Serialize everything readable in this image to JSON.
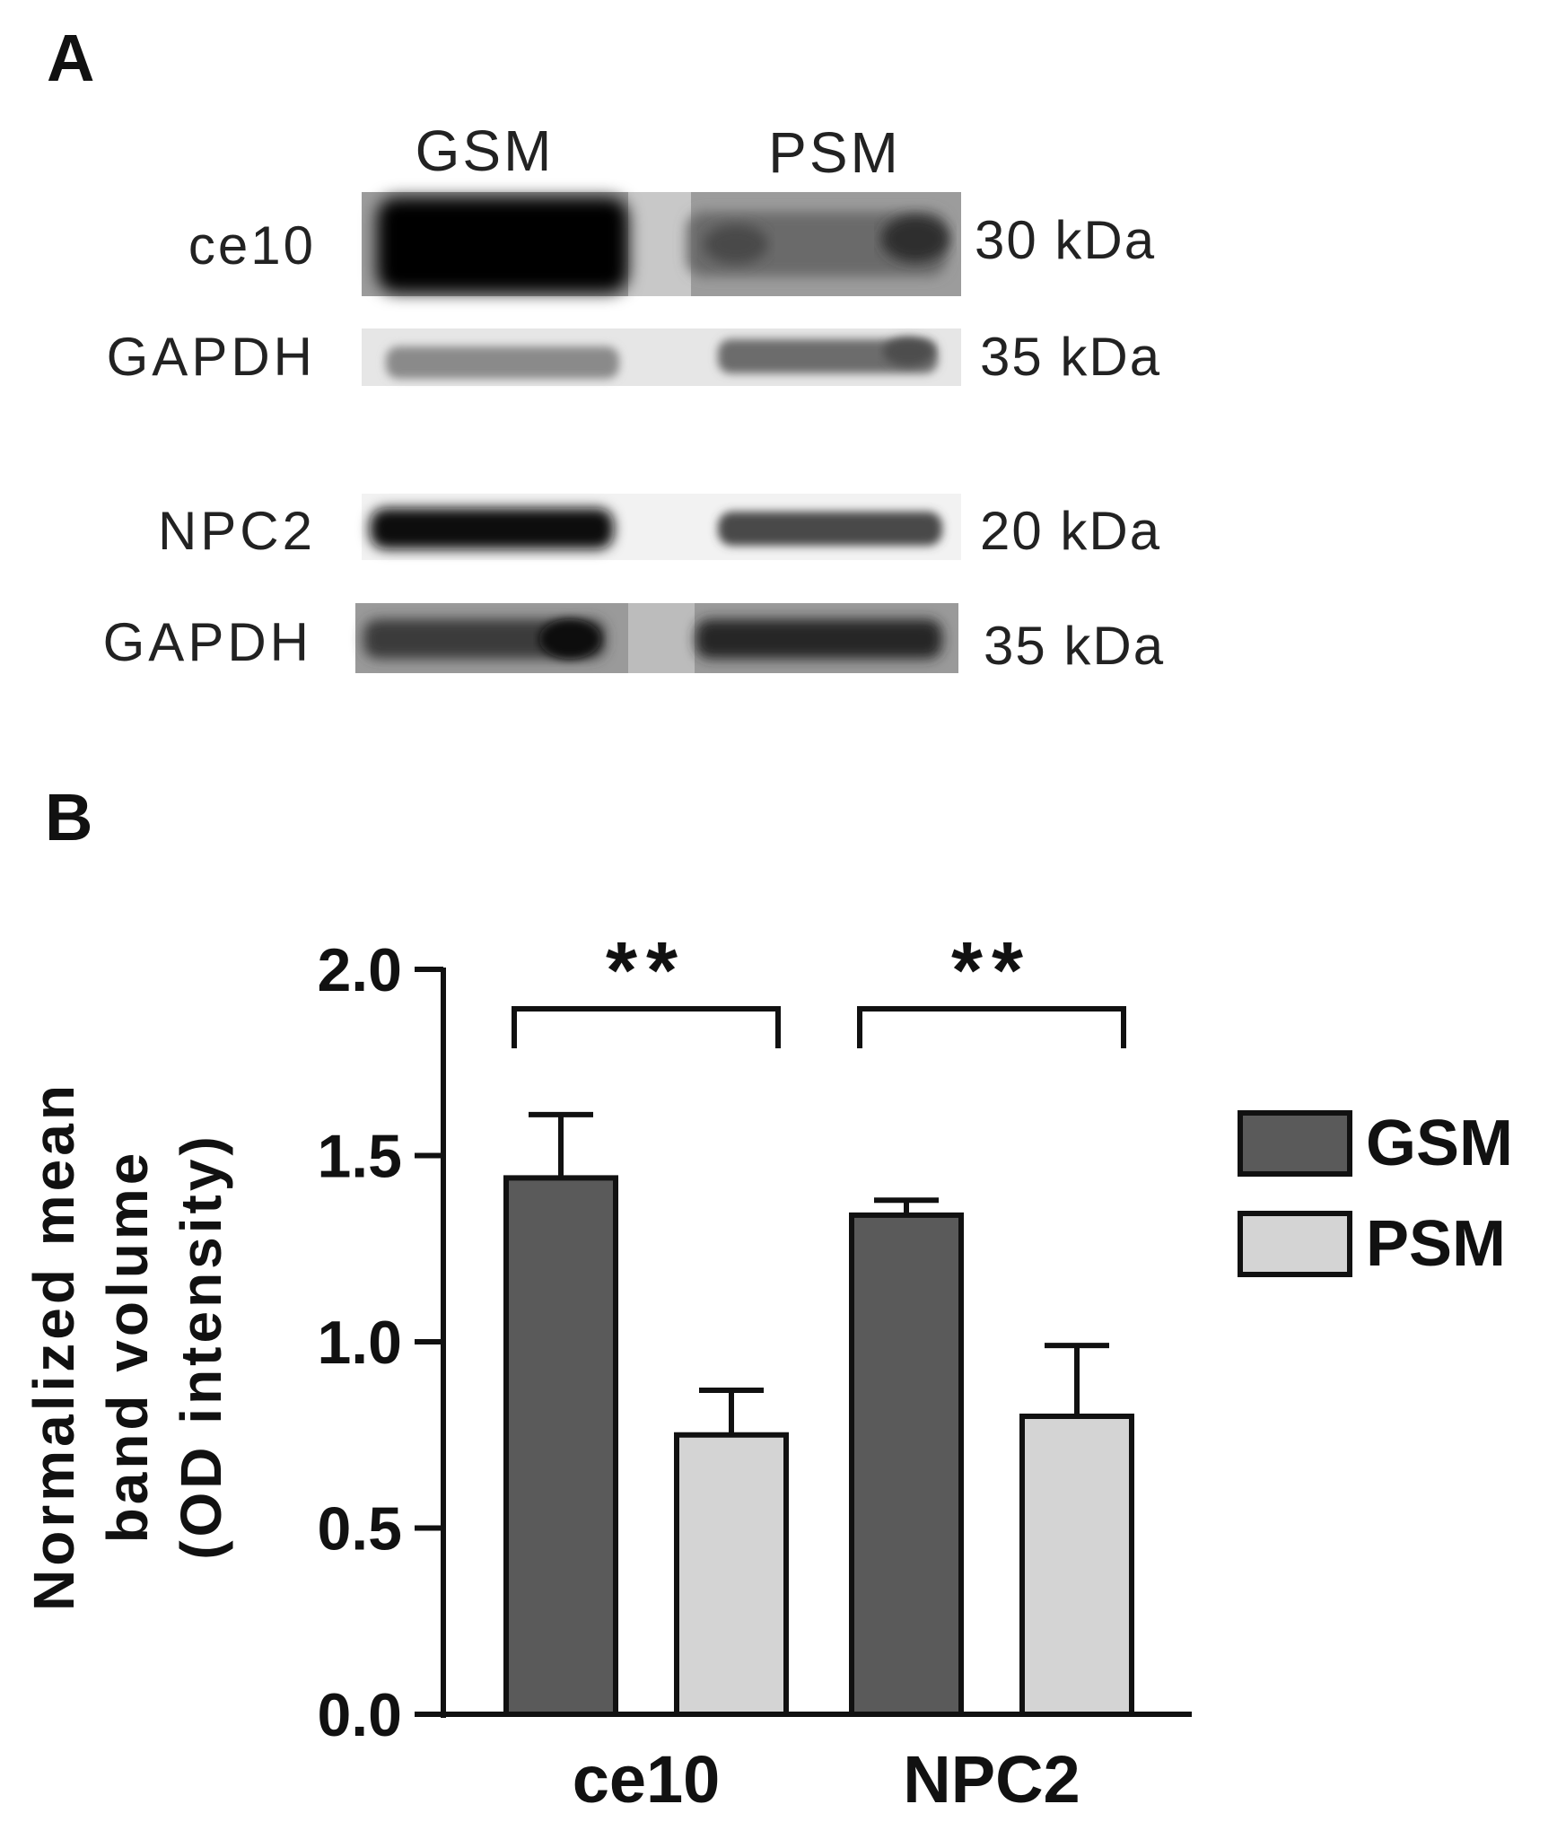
{
  "panel_a": {
    "letter": "A",
    "lane_labels": [
      "GSM",
      "PSM"
    ],
    "blots": [
      {
        "protein": "ce10",
        "mw": "30 kDa"
      },
      {
        "protein": "GAPDH",
        "mw": "35 kDa"
      },
      {
        "protein": "NPC2",
        "mw": "20 kDa"
      },
      {
        "protein": "GAPDH",
        "mw": "35 kDa"
      }
    ]
  },
  "panel_b": {
    "letter": "B"
  },
  "chart_data": {
    "type": "bar",
    "title": "",
    "categories": [
      "ce10",
      "NPC2"
    ],
    "series": [
      {
        "name": "GSM",
        "values": [
          1.44,
          1.34
        ],
        "errors": [
          0.17,
          0.04
        ],
        "color": "#5a5a5a"
      },
      {
        "name": "PSM",
        "values": [
          0.75,
          0.8
        ],
        "errors": [
          0.12,
          0.19
        ],
        "color": "#d4d4d4"
      }
    ],
    "ylabel": [
      "Normalized mean",
      "band volume",
      "(OD intensity)"
    ],
    "ylim": [
      0,
      2.0
    ],
    "yticks": [
      0.0,
      0.5,
      1.0,
      1.5,
      2.0
    ],
    "ytick_labels": [
      "0.0",
      "0.5",
      "1.0",
      "1.5",
      "2.0"
    ],
    "significance": [
      "**",
      "**"
    ],
    "legend": [
      "GSM",
      "PSM"
    ],
    "legend_position": "right",
    "grid": false
  }
}
